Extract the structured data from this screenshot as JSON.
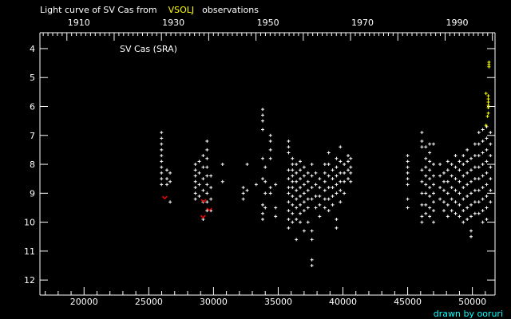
{
  "chart_data": {
    "type": "scatter",
    "title_prefix": "Light curve of SV Cas from",
    "title_source": "VSOLJ",
    "title_suffix": "observations",
    "annotation": "SV Cas (SRA)",
    "credit": "drawn by ooruri",
    "xlim": [
      16590,
      51750
    ],
    "ylim": [
      12.52,
      3.45
    ],
    "y_inverted": true,
    "x_ticks": [
      20000,
      25000,
      30000,
      35000,
      40000,
      45000,
      50000
    ],
    "x_minor_step": 1000,
    "y_ticks": [
      4,
      5,
      6,
      7,
      8,
      9,
      10,
      11,
      12
    ],
    "top_axis_years": [
      1910,
      1930,
      1950,
      1970,
      1990
    ],
    "top_axis_major_step_years": 10,
    "grid": false,
    "colors": {
      "background": "#000000",
      "axes": "#ffffff",
      "visual": "#ffffff",
      "red": "#ff0000",
      "vsolj": "#ffff00",
      "credit": "#00ffff"
    },
    "series": [
      {
        "color": "white",
        "columns": [
          [
            25980,
            [
              6.9,
              7.1,
              7.3,
              7.5,
              7.7,
              7.9,
              8.1,
              8.3,
              8.5,
              8.7
            ]
          ],
          [
            26400,
            [
              8.2,
              8.5,
              8.7
            ]
          ],
          [
            26650,
            [
              8.3,
              8.6,
              9.3
            ]
          ],
          [
            28600,
            [
              8.0,
              8.2,
              8.4,
              8.6,
              8.8,
              9.0,
              9.2
            ]
          ],
          [
            28900,
            [
              7.9,
              8.3,
              8.7,
              9.1
            ]
          ],
          [
            29200,
            [
              7.7,
              8.1,
              8.5,
              8.9,
              9.3,
              9.9
            ]
          ],
          [
            29500,
            [
              7.2,
              7.5,
              7.8,
              8.1,
              8.4,
              8.7,
              9.0,
              9.3,
              9.6
            ]
          ],
          [
            29800,
            [
              8.4,
              8.8,
              9.2,
              9.6
            ]
          ],
          [
            30700,
            [
              8.0,
              8.6
            ]
          ],
          [
            32300,
            [
              8.8,
              9.0,
              9.2
            ]
          ],
          [
            32600,
            [
              8.0,
              8.9
            ]
          ],
          [
            33300,
            [
              8.7
            ]
          ],
          [
            33800,
            [
              6.1,
              6.3,
              6.5,
              6.8,
              7.8,
              8.5,
              9.4,
              9.7,
              9.9
            ]
          ],
          [
            34000,
            [
              8.1,
              8.6,
              9.0,
              9.5
            ]
          ],
          [
            34400,
            [
              7.0,
              7.2,
              7.5,
              7.8,
              8.8,
              9.0
            ]
          ],
          [
            34800,
            [
              8.7,
              9.5,
              9.8
            ]
          ],
          [
            35800,
            [
              7.2,
              7.4,
              7.6,
              8.2,
              8.5,
              8.8,
              9.0,
              9.3,
              9.6,
              9.9,
              10.2
            ]
          ],
          [
            36100,
            [
              7.8,
              8.0,
              8.2,
              8.4,
              8.6,
              8.8,
              9.1,
              9.4,
              9.7,
              10.0
            ]
          ],
          [
            36400,
            [
              8.0,
              8.3,
              8.6,
              8.9,
              9.2,
              9.5,
              9.9,
              10.6
            ]
          ],
          [
            36700,
            [
              7.9,
              8.2,
              8.5,
              8.8,
              9.1,
              9.4,
              9.7,
              10.0
            ]
          ],
          [
            37000,
            [
              8.1,
              8.4,
              8.7,
              9.0,
              9.3,
              9.6,
              10.3
            ]
          ],
          [
            37300,
            [
              8.3,
              8.6,
              8.9,
              9.2,
              9.5,
              10.0
            ]
          ],
          [
            37600,
            [
              8.0,
              8.4,
              8.8,
              9.2,
              10.3,
              10.6,
              11.3,
              11.5
            ]
          ],
          [
            37900,
            [
              8.3,
              8.7,
              9.1,
              9.5
            ]
          ],
          [
            38200,
            [
              8.5,
              8.8,
              9.1,
              9.4,
              9.8
            ]
          ],
          [
            38600,
            [
              8.0,
              8.3,
              8.6,
              8.9,
              9.2,
              9.5
            ]
          ],
          [
            38900,
            [
              7.6,
              8.0,
              8.4,
              8.8,
              9.2,
              9.6
            ]
          ],
          [
            39200,
            [
              8.2,
              8.5,
              8.8,
              9.1,
              9.4
            ]
          ],
          [
            39500,
            [
              7.8,
              8.1,
              8.4,
              8.7,
              9.0,
              9.9,
              10.2
            ]
          ],
          [
            39800,
            [
              7.4,
              7.9,
              8.3,
              8.6,
              8.9,
              9.3
            ]
          ],
          [
            40100,
            [
              8.0,
              8.3,
              8.6,
              9.0
            ]
          ],
          [
            40400,
            [
              7.7,
              7.9,
              8.2,
              8.5
            ]
          ],
          [
            40600,
            [
              7.8,
              8.1,
              8.3,
              8.6
            ]
          ],
          [
            45000,
            [
              7.7,
              7.9,
              8.1,
              8.3,
              8.5,
              8.7,
              9.2,
              9.5
            ]
          ],
          [
            46100,
            [
              6.9,
              7.2,
              7.4,
              8.2,
              8.6,
              9.0,
              9.4,
              9.8,
              10.0
            ]
          ],
          [
            46400,
            [
              7.4,
              7.8,
              8.1,
              8.4,
              8.7,
              9.0,
              9.4,
              9.7
            ]
          ],
          [
            46700,
            [
              7.3,
              7.6,
              7.9,
              8.2,
              8.5,
              8.8,
              9.1,
              9.5,
              9.8
            ]
          ],
          [
            47000,
            [
              7.3,
              8.0,
              8.4,
              8.7,
              9.0,
              9.3,
              9.6,
              10.0
            ]
          ],
          [
            47500,
            [
              8.0,
              8.4,
              8.8,
              9.2
            ]
          ],
          [
            47800,
            [
              8.3,
              8.6,
              8.9,
              9.3,
              9.6
            ]
          ],
          [
            48100,
            [
              7.9,
              8.2,
              8.6,
              9.0,
              9.4,
              9.8
            ]
          ],
          [
            48400,
            [
              8.0,
              8.4,
              8.8,
              9.2,
              9.6
            ]
          ],
          [
            48700,
            [
              7.7,
              8.1,
              8.5,
              8.9,
              9.3,
              9.7
            ]
          ],
          [
            49000,
            [
              7.9,
              8.2,
              8.6,
              9.0,
              9.4,
              9.8
            ]
          ],
          [
            49300,
            [
              7.7,
              8.0,
              8.4,
              8.8,
              9.2,
              9.6,
              10.0
            ]
          ],
          [
            49600,
            [
              7.5,
              7.9,
              8.3,
              8.7,
              9.1,
              9.5,
              9.9
            ]
          ],
          [
            49900,
            [
              7.8,
              8.2,
              8.6,
              9.0,
              9.4,
              9.8,
              10.3,
              10.5
            ]
          ],
          [
            50200,
            [
              7.3,
              7.7,
              8.1,
              8.5,
              8.9,
              9.3,
              9.7
            ]
          ],
          [
            50500,
            [
              6.9,
              7.3,
              7.7,
              8.1,
              8.5,
              8.9,
              9.3,
              9.7
            ]
          ],
          [
            50800,
            [
              6.8,
              7.2,
              7.6,
              8.0,
              8.4,
              8.8,
              9.2,
              9.6,
              10.0
            ]
          ],
          [
            51100,
            [
              6.7,
              7.1,
              7.5,
              7.9,
              8.3,
              8.7,
              9.1,
              9.5,
              9.9
            ]
          ],
          [
            51400,
            [
              6.9,
              7.3,
              7.7,
              8.1,
              8.5,
              8.9,
              9.3
            ]
          ]
        ]
      },
      {
        "color": "red",
        "marker": "v",
        "columns": [
          [
            26230,
            [
              9.16
            ]
          ],
          [
            29240,
            [
              9.27
            ]
          ],
          [
            29680,
            [
              9.57
            ]
          ],
          [
            29190,
            [
              9.82
            ]
          ]
        ]
      },
      {
        "color": "yellow",
        "columns": [
          [
            51280,
            [
              4.47,
              4.55,
              4.63
            ]
          ],
          [
            51050,
            [
              5.55
            ]
          ],
          [
            51230,
            [
              5.63,
              5.74,
              5.85,
              5.96,
              6.04,
              6.23
            ]
          ],
          [
            51170,
            [
              6.34
            ]
          ],
          [
            51050,
            [
              6.65
            ]
          ]
        ]
      }
    ]
  }
}
